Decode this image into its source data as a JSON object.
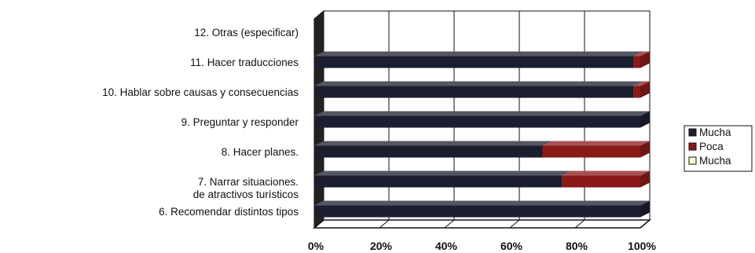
{
  "chart_data": {
    "type": "bar",
    "orientation": "horizontal",
    "stacked": "100%",
    "three_d": true,
    "categories": [
      "6. Recomendar distintos tipos de atractivos turísticos",
      "7. Narrar situaciones.",
      "8. Hacer planes.",
      "9. Preguntar y responder",
      "10. Hablar sobre causas y consecuencias",
      "11. Hacer traducciones",
      "12. Otras (especificar)"
    ],
    "category_label_lines": [
      [
        "6. Recomendar distintos tipos",
        "de atractivos turísticos"
      ],
      [
        "7. Narrar situaciones."
      ],
      [
        "8. Hacer planes."
      ],
      [
        "9. Preguntar y responder"
      ],
      [
        "10. Hablar sobre causas y consecuencias"
      ],
      [
        "11. Hacer traducciones"
      ],
      [
        "12. Otras (especificar)"
      ]
    ],
    "series": [
      {
        "name": "Mucha",
        "color": "#1b1e2e",
        "values": [
          100,
          76,
          70,
          100,
          98,
          98,
          0
        ]
      },
      {
        "name": "Poca",
        "color": "#8a1a1a",
        "values": [
          0,
          24,
          30,
          0,
          2,
          2,
          0
        ]
      },
      {
        "name": "Mucha",
        "color": "#ffffcc",
        "values": [
          0,
          0,
          0,
          0,
          0,
          0,
          0
        ]
      }
    ],
    "x_ticks": [
      "0%",
      "20%",
      "40%",
      "60%",
      "80%",
      "100%"
    ],
    "xlim": [
      0,
      100
    ],
    "grid": true,
    "legend_position": "right"
  }
}
